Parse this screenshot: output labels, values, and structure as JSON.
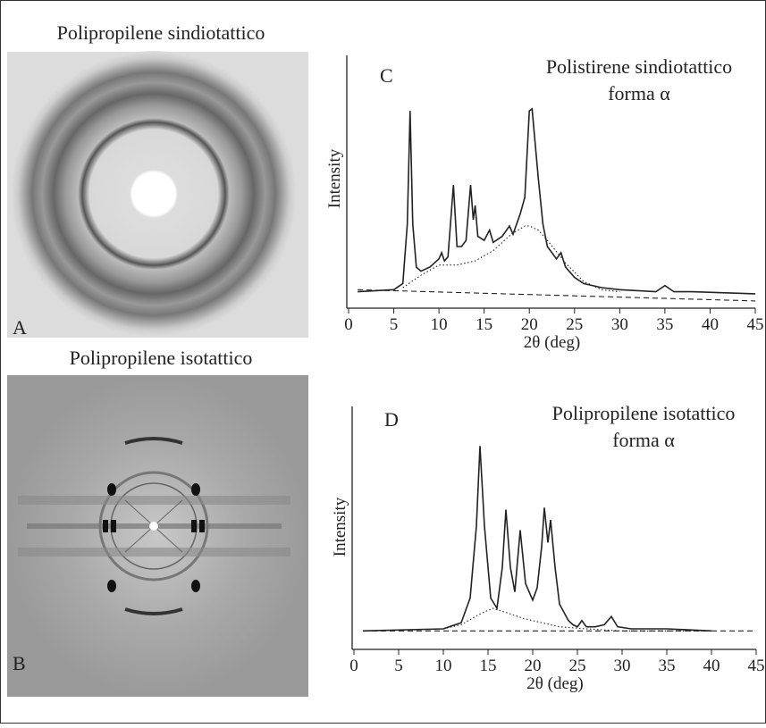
{
  "images": [
    {
      "title": "Polipropilene sindiotattico",
      "label": "A"
    },
    {
      "title": "Polipropilene isotattico",
      "label": "B"
    }
  ],
  "chart_data": [
    {
      "type": "line",
      "panel_label": "C",
      "title": "Polistirene sindiotattico",
      "subtitle": "forma α",
      "y_label": "Intensity",
      "x_label": "2θ (deg)",
      "xlim": [
        0,
        45
      ],
      "xticks": [
        0,
        5,
        10,
        15,
        20,
        25,
        30,
        35,
        40,
        45
      ],
      "series": [
        {
          "color": "#222222",
          "line_style": "solid",
          "x": [
            1,
            5,
            6,
            6.5,
            6.8,
            7.1,
            7.5,
            8,
            9,
            10,
            10.3,
            10.6,
            11,
            11.6,
            12,
            12.5,
            13,
            13.5,
            13.8,
            14,
            14.3,
            15,
            15.6,
            16,
            17,
            17.8,
            18.2,
            19,
            19.5,
            20,
            20.3,
            21,
            21.5,
            22,
            23,
            23.5,
            24,
            25,
            26,
            28,
            30,
            34,
            35,
            36,
            38,
            45
          ],
          "values": [
            8,
            9,
            12,
            41,
            96,
            41,
            20,
            18,
            20,
            24,
            27,
            23,
            25,
            60,
            30,
            30,
            33,
            60,
            43,
            50,
            35,
            33,
            38,
            32,
            35,
            40,
            36,
            46,
            54,
            96,
            97,
            63,
            41,
            30,
            24,
            27,
            20,
            15,
            12,
            10,
            9,
            8,
            11,
            8,
            8,
            7
          ]
        },
        {
          "color": "#222222",
          "line_style": "dotted",
          "x": [
            6,
            8,
            10,
            12,
            14,
            16,
            18,
            19.5,
            20,
            21,
            22,
            24,
            26,
            28,
            30
          ],
          "values": [
            10,
            16,
            21,
            21,
            23,
            28,
            36,
            40,
            40,
            38,
            33,
            22,
            13,
            9,
            8
          ]
        },
        {
          "color": "#222222",
          "line_style": "dashed",
          "x": [
            1,
            45
          ],
          "values": [
            9,
            3.5
          ]
        }
      ]
    },
    {
      "type": "line",
      "panel_label": "D",
      "title": "Polipropilene isotattico",
      "subtitle": "forma α",
      "y_label": "Intensity",
      "x_label": "2θ (deg)",
      "xlim": [
        0,
        45
      ],
      "xticks": [
        0,
        5,
        10,
        15,
        20,
        25,
        30,
        35,
        40,
        45
      ],
      "series": [
        {
          "color": "#222222",
          "line_style": "solid",
          "x": [
            1,
            10,
            12,
            13,
            13.7,
            14.1,
            14.6,
            15.3,
            16,
            16.6,
            17,
            17.5,
            18,
            18.6,
            19.2,
            20,
            20.5,
            21,
            21.3,
            21.7,
            22,
            22.5,
            23,
            24,
            24.5,
            25,
            25.5,
            26,
            27,
            28,
            28.8,
            29.5,
            31,
            35,
            40
          ],
          "values": [
            9,
            10,
            13,
            25,
            60,
            99,
            60,
            25,
            20,
            40,
            68,
            40,
            28,
            58,
            32,
            24,
            30,
            50,
            69,
            52,
            63,
            40,
            22,
            14,
            12,
            11,
            14,
            11,
            11,
            12,
            16,
            11,
            10,
            10,
            9
          ]
        },
        {
          "color": "#222222",
          "line_style": "dotted",
          "x": [
            10,
            12,
            14,
            15.5,
            17,
            19,
            21,
            23,
            26,
            30,
            40
          ],
          "values": [
            10,
            12,
            17,
            20,
            18,
            15,
            13,
            11,
            10,
            9,
            9
          ]
        },
        {
          "color": "#222222",
          "line_style": "dashed",
          "x": [
            1,
            45
          ],
          "values": [
            9,
            9
          ]
        }
      ]
    }
  ]
}
